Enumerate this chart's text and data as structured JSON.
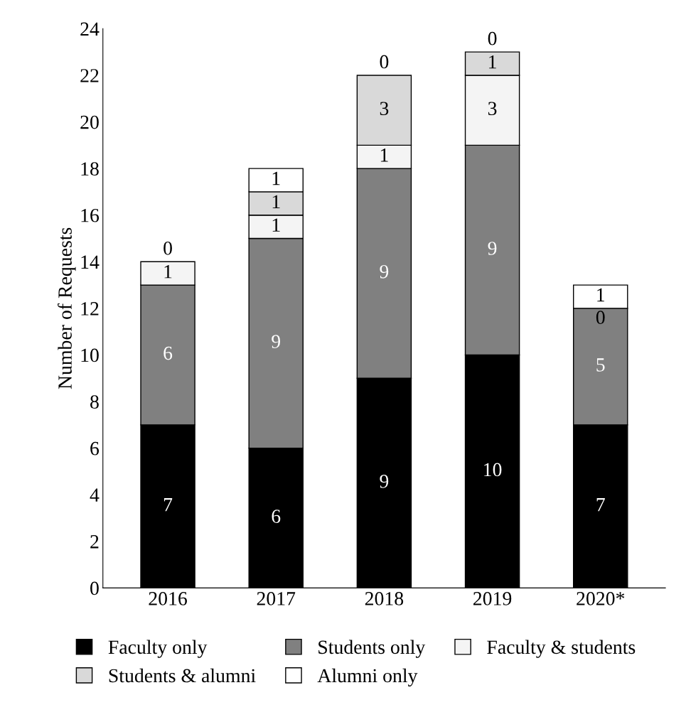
{
  "chart_data": {
    "type": "bar",
    "stacked": true,
    "ylabel": "Number of Requests",
    "categories": [
      "2016",
      "2017",
      "2018",
      "2019",
      "2020*"
    ],
    "series": [
      {
        "name": "Faculty only",
        "color": "#000000",
        "values": [
          7,
          6,
          9,
          10,
          7
        ],
        "value_labels": [
          "7",
          "6",
          "9",
          "10",
          "7"
        ]
      },
      {
        "name": "Students only",
        "color": "#808080",
        "values": [
          6,
          9,
          9,
          9,
          5
        ],
        "value_labels": [
          "6",
          "9",
          "9",
          "9",
          "5"
        ]
      },
      {
        "name": "Faculty & students",
        "color": "#f4f4f4",
        "values": [
          1,
          1,
          1,
          3,
          0
        ],
        "value_labels": [
          "1",
          "1",
          "1",
          "3",
          "0"
        ]
      },
      {
        "name": "Students & alumni",
        "color": "#d9d9d9",
        "values": [
          0,
          1,
          3,
          1,
          0
        ],
        "value_labels": [
          "0",
          "1",
          "3",
          "1",
          null
        ]
      },
      {
        "name": "Alumni only",
        "color": "#ffffff",
        "values": [
          0,
          1,
          0,
          0,
          1
        ],
        "value_labels": [
          null,
          "1",
          "0",
          "0",
          "1"
        ]
      }
    ],
    "ylim": [
      0,
      24
    ],
    "yticks": [
      0,
      2,
      4,
      6,
      8,
      10,
      12,
      14,
      16,
      18,
      20,
      22,
      24
    ],
    "grid": false,
    "legend": "bottom"
  }
}
